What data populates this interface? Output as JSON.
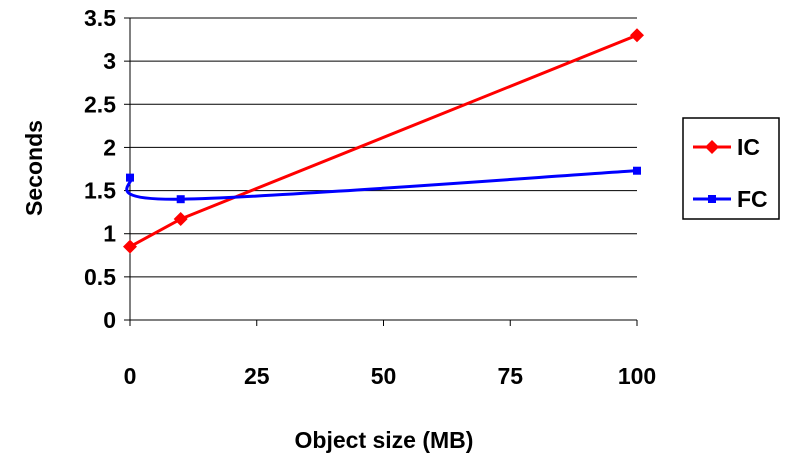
{
  "chart_data": {
    "type": "line",
    "title": "",
    "xlabel": "Object size (MB)",
    "ylabel": "Seconds",
    "xlim": [
      0,
      100
    ],
    "ylim": [
      0,
      3.5
    ],
    "x_ticks": [
      "0",
      "25",
      "50",
      "75",
      "100"
    ],
    "y_ticks": [
      "0",
      "0.5",
      "1",
      "1.5",
      "2",
      "2.5",
      "3",
      "3.5"
    ],
    "x": [
      0,
      10,
      100
    ],
    "series": [
      {
        "name": "IC",
        "values": [
          0.85,
          1.17,
          3.3
        ],
        "color": "#ff0000",
        "marker": "diamond"
      },
      {
        "name": "FC",
        "values": [
          1.65,
          1.4,
          1.73
        ],
        "color": "#0000ff",
        "marker": "square"
      }
    ],
    "grid": "horizontal",
    "legend": "right"
  }
}
